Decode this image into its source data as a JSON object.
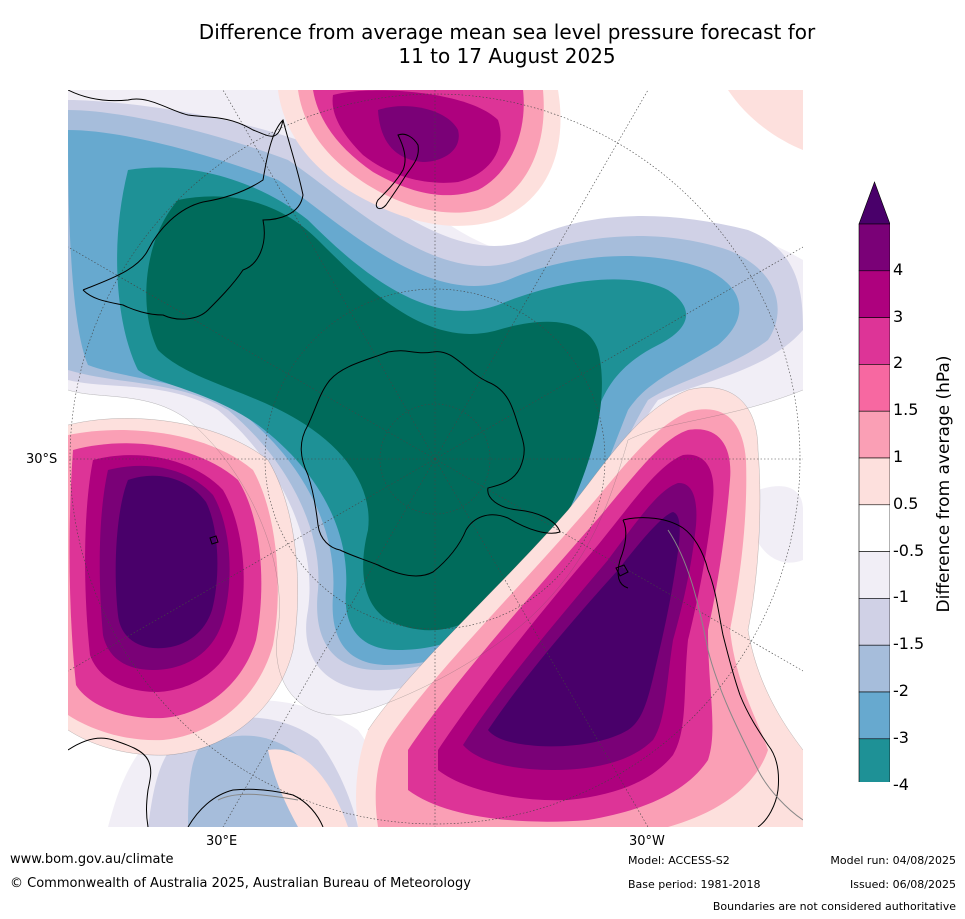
{
  "title": {
    "line1": "Difference from average mean sea level pressure forecast for",
    "line2": "11 to 17 August 2025"
  },
  "map": {
    "projection": "south polar stereographic",
    "labels": {
      "lat_left": "30°S",
      "lon_bottom_left": "30°E",
      "lon_bottom_right": "30°W"
    },
    "colors": {
      "neg4": "#006b5b",
      "neg3": "#1e9196",
      "neg2": "#67a9cf",
      "neg15": "#a6bddb",
      "neg1": "#d0d1e6",
      "neg05": "#f1eef6",
      "zero": "#ffffff",
      "pos05": "#fde0dd",
      "pos1": "#fa9fb5",
      "pos15": "#f768a1",
      "pos2": "#dd3497",
      "pos3": "#ae017e",
      "pos4": "#7a0177",
      "max": "#49006a"
    }
  },
  "colorbar": {
    "title": "Difference from average (hPa)",
    "ticks": [
      "4",
      "3",
      "2",
      "1.5",
      "1",
      "0.5",
      "-0.5",
      "-1",
      "-1.5",
      "-2",
      "-3",
      "-4"
    ],
    "colors": [
      "#7a0177",
      "#ae017e",
      "#dd3497",
      "#f768a1",
      "#fa9fb5",
      "#fde0dd",
      "#ffffff",
      "#f1eef6",
      "#d0d1e6",
      "#a6bddb",
      "#67a9cf",
      "#1e9196",
      "#006b5b"
    ],
    "top_arrow_color": "#49006a",
    "bottom_arrow_color": "#006b5b"
  },
  "footer": {
    "website": "www.bom.gov.au/climate",
    "copyright": "© Commonwealth of Australia 2025, Australian Bureau of Meteorology",
    "model": "Model: ACCESS-S2",
    "base_period": "Base period: 1981-2018",
    "model_run": "Model run: 04/08/2025",
    "issued": "Issued: 06/08/2025",
    "disclaimer": "Boundaries are not considered authoritative"
  }
}
